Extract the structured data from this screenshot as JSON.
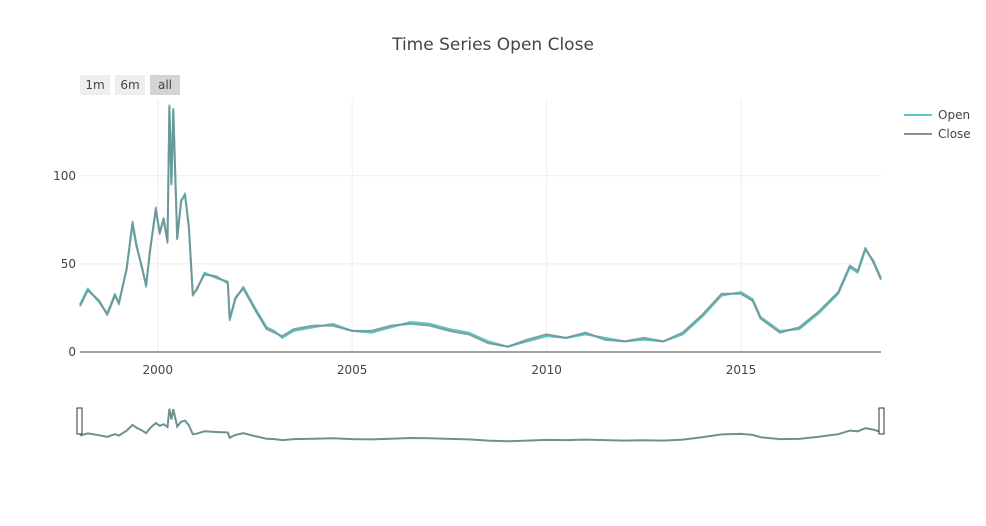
{
  "chart_data": {
    "type": "line",
    "title": "Time Series Open Close",
    "xlabel": "",
    "ylabel": "",
    "xlim": [
      1998.0,
      2018.6
    ],
    "ylim": [
      0,
      143
    ],
    "x_ticks": [
      2000,
      2005,
      2010,
      2015
    ],
    "y_ticks": [
      0,
      50,
      100
    ],
    "grid": true,
    "legend_position": "top-right",
    "range_selector": {
      "buttons": [
        {
          "label": "1m",
          "active": false
        },
        {
          "label": "6m",
          "active": false
        },
        {
          "label": "all",
          "active": true
        }
      ]
    },
    "range_slider": true,
    "series": [
      {
        "name": "Open",
        "color": "#5bc8c8",
        "points": [
          [
            1998.0,
            27
          ],
          [
            1998.2,
            36
          ],
          [
            1998.5,
            28
          ],
          [
            1998.7,
            22
          ],
          [
            1998.9,
            33
          ],
          [
            1999.0,
            27
          ],
          [
            1999.2,
            48
          ],
          [
            1999.35,
            72
          ],
          [
            1999.45,
            60
          ],
          [
            1999.6,
            48
          ],
          [
            1999.7,
            37
          ],
          [
            1999.8,
            58
          ],
          [
            1999.95,
            80
          ],
          [
            2000.05,
            68
          ],
          [
            2000.15,
            75
          ],
          [
            2000.25,
            63
          ],
          [
            2000.3,
            140
          ],
          [
            2000.35,
            95
          ],
          [
            2000.4,
            138
          ],
          [
            2000.5,
            65
          ],
          [
            2000.6,
            85
          ],
          [
            2000.7,
            90
          ],
          [
            2000.8,
            70
          ],
          [
            2000.9,
            33
          ],
          [
            2001.0,
            35
          ],
          [
            2001.2,
            45
          ],
          [
            2001.5,
            42
          ],
          [
            2001.8,
            40
          ],
          [
            2001.85,
            18
          ],
          [
            2002.0,
            30
          ],
          [
            2002.2,
            37
          ],
          [
            2002.5,
            25
          ],
          [
            2002.8,
            14
          ],
          [
            2003.0,
            12
          ],
          [
            2003.2,
            8
          ],
          [
            2003.5,
            12
          ],
          [
            2004.0,
            14
          ],
          [
            2004.5,
            16
          ],
          [
            2005.0,
            12
          ],
          [
            2005.5,
            11
          ],
          [
            2006.0,
            14
          ],
          [
            2006.5,
            17
          ],
          [
            2007.0,
            16
          ],
          [
            2007.5,
            13
          ],
          [
            2008.0,
            11
          ],
          [
            2008.5,
            6
          ],
          [
            2009.0,
            3
          ],
          [
            2009.5,
            6
          ],
          [
            2010.0,
            9
          ],
          [
            2010.5,
            8
          ],
          [
            2011.0,
            10
          ],
          [
            2011.5,
            8
          ],
          [
            2012.0,
            6
          ],
          [
            2012.5,
            7
          ],
          [
            2013.0,
            6
          ],
          [
            2013.5,
            10
          ],
          [
            2014.0,
            20
          ],
          [
            2014.5,
            32
          ],
          [
            2015.0,
            34
          ],
          [
            2015.3,
            30
          ],
          [
            2015.5,
            20
          ],
          [
            2016.0,
            12
          ],
          [
            2016.5,
            13
          ],
          [
            2017.0,
            22
          ],
          [
            2017.5,
            33
          ],
          [
            2017.8,
            48
          ],
          [
            2018.0,
            45
          ],
          [
            2018.2,
            58
          ],
          [
            2018.4,
            52
          ],
          [
            2018.6,
            42
          ]
        ]
      },
      {
        "name": "Close",
        "color": "#909090",
        "points": [
          [
            1998.0,
            26
          ],
          [
            1998.2,
            35
          ],
          [
            1998.5,
            29
          ],
          [
            1998.7,
            21
          ],
          [
            1998.9,
            32
          ],
          [
            1999.0,
            28
          ],
          [
            1999.2,
            47
          ],
          [
            1999.35,
            74
          ],
          [
            1999.45,
            61
          ],
          [
            1999.6,
            47
          ],
          [
            1999.7,
            38
          ],
          [
            1999.8,
            57
          ],
          [
            1999.95,
            82
          ],
          [
            2000.05,
            67
          ],
          [
            2000.15,
            76
          ],
          [
            2000.25,
            62
          ],
          [
            2000.3,
            139
          ],
          [
            2000.35,
            96
          ],
          [
            2000.4,
            137
          ],
          [
            2000.5,
            64
          ],
          [
            2000.6,
            86
          ],
          [
            2000.7,
            89
          ],
          [
            2000.8,
            71
          ],
          [
            2000.9,
            32
          ],
          [
            2001.0,
            36
          ],
          [
            2001.2,
            44
          ],
          [
            2001.5,
            43
          ],
          [
            2001.8,
            39
          ],
          [
            2001.85,
            19
          ],
          [
            2002.0,
            31
          ],
          [
            2002.2,
            36
          ],
          [
            2002.5,
            24
          ],
          [
            2002.8,
            13
          ],
          [
            2003.0,
            11
          ],
          [
            2003.2,
            9
          ],
          [
            2003.5,
            13
          ],
          [
            2004.0,
            15
          ],
          [
            2004.5,
            15
          ],
          [
            2005.0,
            12
          ],
          [
            2005.5,
            12
          ],
          [
            2006.0,
            15
          ],
          [
            2006.5,
            16
          ],
          [
            2007.0,
            15
          ],
          [
            2007.5,
            12
          ],
          [
            2008.0,
            10
          ],
          [
            2008.5,
            5
          ],
          [
            2009.0,
            3
          ],
          [
            2009.5,
            7
          ],
          [
            2010.0,
            10
          ],
          [
            2010.5,
            8
          ],
          [
            2011.0,
            11
          ],
          [
            2011.5,
            7
          ],
          [
            2012.0,
            6
          ],
          [
            2012.5,
            8
          ],
          [
            2013.0,
            6
          ],
          [
            2013.5,
            11
          ],
          [
            2014.0,
            21
          ],
          [
            2014.5,
            33
          ],
          [
            2015.0,
            33
          ],
          [
            2015.3,
            29
          ],
          [
            2015.5,
            19
          ],
          [
            2016.0,
            11
          ],
          [
            2016.5,
            14
          ],
          [
            2017.0,
            23
          ],
          [
            2017.5,
            34
          ],
          [
            2017.8,
            49
          ],
          [
            2018.0,
            46
          ],
          [
            2018.2,
            59
          ],
          [
            2018.4,
            51
          ],
          [
            2018.6,
            41
          ]
        ]
      }
    ]
  }
}
